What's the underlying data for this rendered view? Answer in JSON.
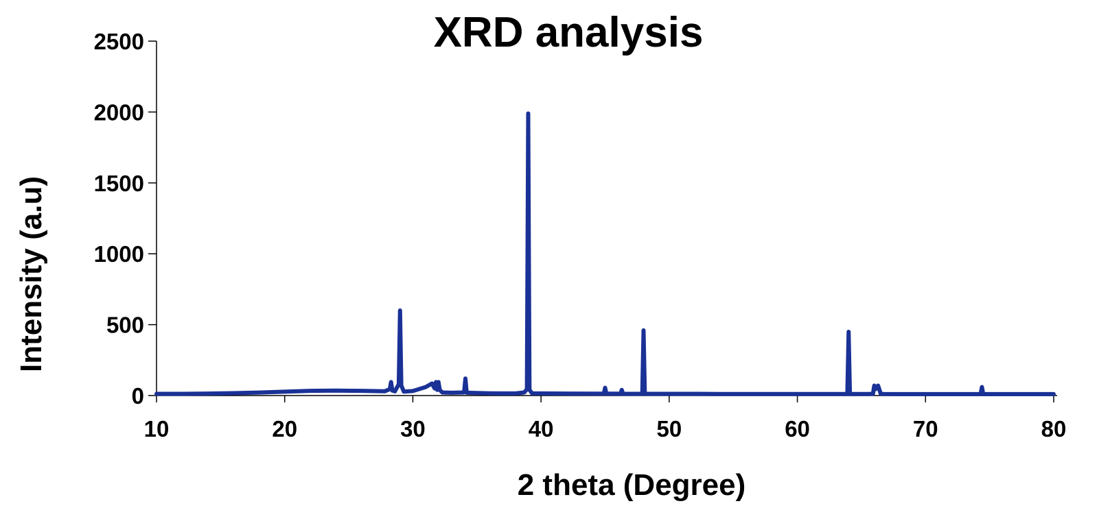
{
  "chart_data": {
    "type": "line",
    "title": "XRD analysis",
    "xlabel": "2 theta (Degree)",
    "ylabel": "Intensity (a.u)",
    "xlim": [
      10,
      80
    ],
    "ylim": [
      0,
      2500
    ],
    "x_ticks": [
      10,
      20,
      30,
      40,
      50,
      60,
      70,
      80
    ],
    "y_ticks": [
      0,
      500,
      1000,
      1500,
      2000,
      2500
    ],
    "grid": false,
    "legend": "none",
    "line_color": "#1a3196",
    "series": [
      {
        "x": [
          10,
          12,
          14,
          16,
          18,
          20,
          22,
          24,
          26,
          27.8,
          28.2,
          28.3,
          28.4,
          28.6,
          28.9,
          29.0,
          29.1,
          29.3,
          30,
          31,
          31.5,
          31.7,
          31.8,
          31.9,
          32.0,
          32.1,
          32.3,
          33,
          34.0,
          34.1,
          34.2,
          35,
          36,
          37,
          38,
          38.7,
          38.9,
          39.0,
          39.1,
          39.3,
          40,
          42,
          44,
          44.9,
          45.0,
          45.1,
          46,
          46.2,
          46.3,
          46.4,
          47.9,
          48.0,
          48.1,
          48.2,
          50,
          52,
          54,
          56,
          58,
          60,
          62,
          63.9,
          64.0,
          64.1,
          64.2,
          65.5,
          65.9,
          66.0,
          66.1,
          66.3,
          66.5,
          66.7,
          68,
          70,
          72,
          74.3,
          74.4,
          74.5,
          76,
          78,
          80
        ],
        "y": [
          12,
          12,
          14,
          17,
          21,
          27,
          33,
          35,
          33,
          30,
          45,
          95,
          35,
          30,
          80,
          600,
          70,
          28,
          32,
          60,
          85,
          50,
          95,
          40,
          95,
          40,
          22,
          20,
          22,
          120,
          20,
          18,
          16,
          15,
          15,
          22,
          45,
          1990,
          40,
          16,
          15,
          14,
          13,
          13,
          55,
          13,
          13,
          12,
          40,
          12,
          12,
          460,
          12,
          12,
          12,
          12,
          11,
          11,
          11,
          11,
          11,
          11,
          450,
          11,
          11,
          11,
          12,
          70,
          45,
          70,
          13,
          11,
          10,
          10,
          10,
          10,
          60,
          10,
          10,
          10,
          10
        ]
      }
    ]
  }
}
